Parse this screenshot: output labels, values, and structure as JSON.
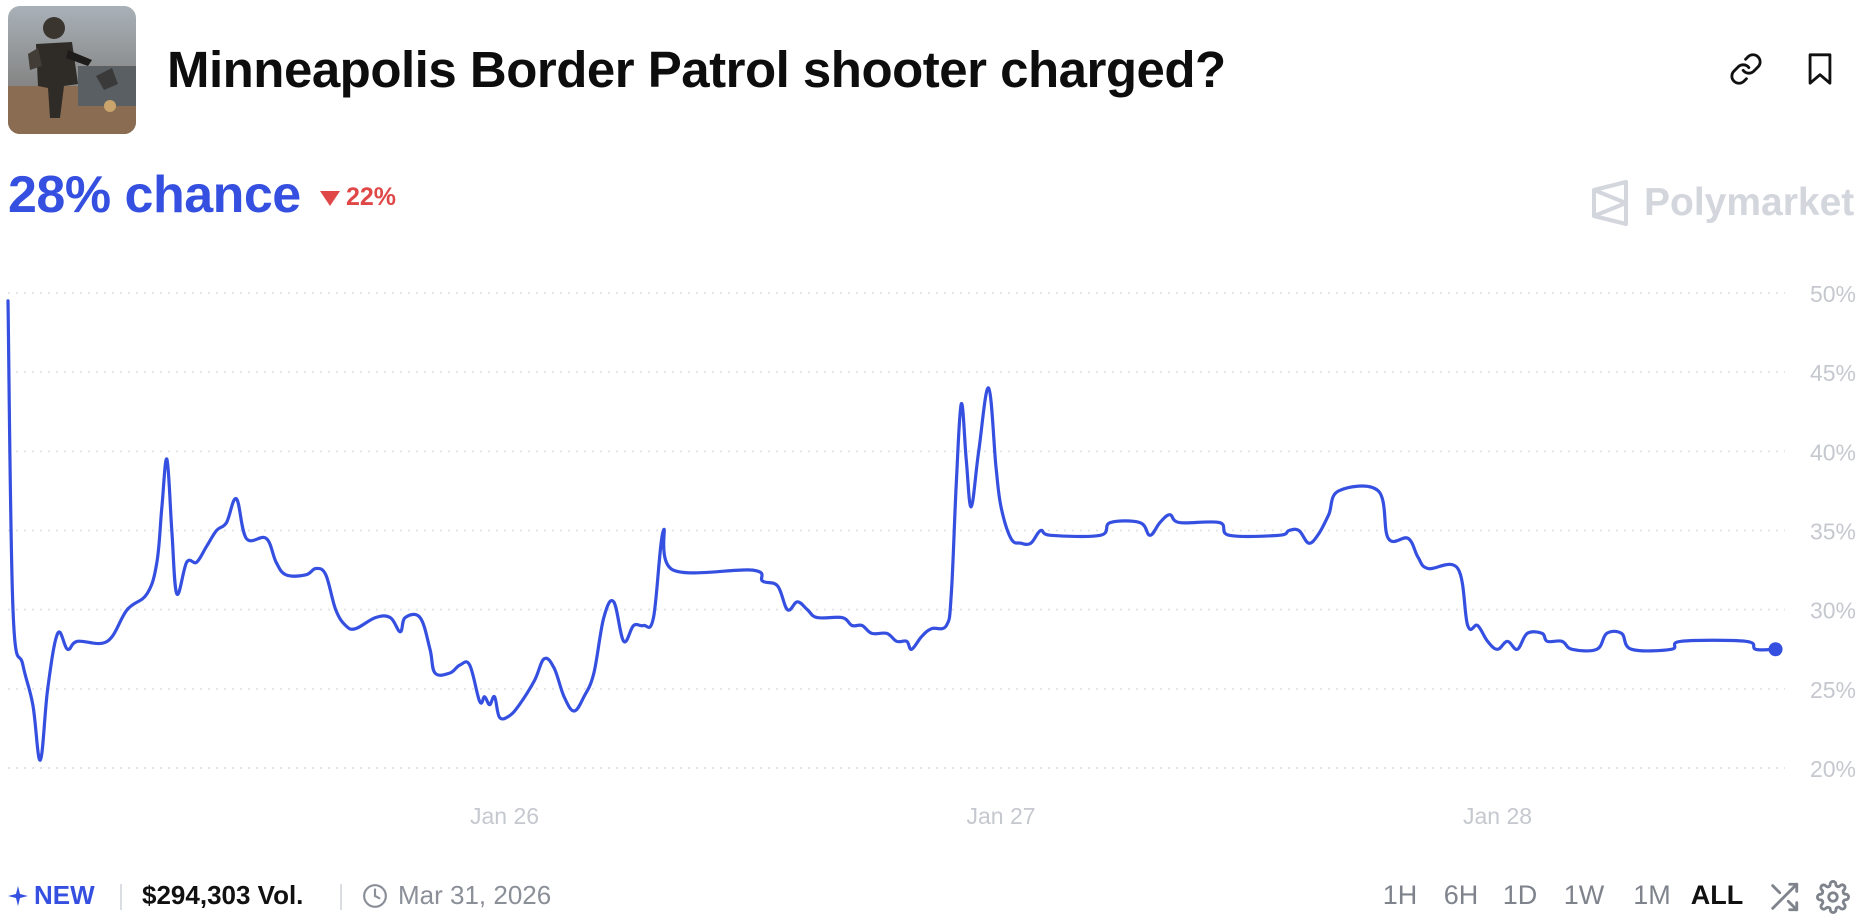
{
  "header": {
    "title": "Minneapolis Border Patrol shooter charged?",
    "thumbnail_icon": "market-photo-icon",
    "link_icon": "link-icon",
    "bookmark_icon": "bookmark-icon"
  },
  "summary": {
    "chance": "28% chance",
    "change": "22%",
    "change_direction": "down",
    "brand": "Polymarket"
  },
  "colors": {
    "accent": "#3550e0",
    "negative": "#e04848",
    "grid": "#e3e5e8",
    "axis_text": "#c5c8ce"
  },
  "chart_data": {
    "type": "line",
    "title": "",
    "xlabel": "",
    "ylabel": "",
    "ylim": [
      20,
      50
    ],
    "y_ticks": [
      "50%",
      "45%",
      "40%",
      "35%",
      "30%",
      "25%",
      "20%"
    ],
    "x_ticks": [
      "Jan 26",
      "Jan 27",
      "Jan 28"
    ],
    "x_tick_days": [
      1,
      2,
      3
    ],
    "grid": true,
    "series": [
      {
        "color": "#3550e0",
        "points": [
          [
            0.0,
            49.5
          ],
          [
            0.01,
            30.0
          ],
          [
            0.03,
            26.5
          ],
          [
            0.05,
            24.0
          ],
          [
            0.065,
            20.5
          ],
          [
            0.08,
            25.0
          ],
          [
            0.1,
            28.5
          ],
          [
            0.12,
            27.5
          ],
          [
            0.14,
            28.0
          ],
          [
            0.2,
            28.0
          ],
          [
            0.24,
            30.0
          ],
          [
            0.28,
            31.0
          ],
          [
            0.3,
            33.0
          ],
          [
            0.31,
            36.5
          ],
          [
            0.32,
            39.5
          ],
          [
            0.33,
            35.0
          ],
          [
            0.34,
            31.0
          ],
          [
            0.36,
            33.0
          ],
          [
            0.38,
            33.0
          ],
          [
            0.4,
            34.0
          ],
          [
            0.42,
            35.0
          ],
          [
            0.44,
            35.5
          ],
          [
            0.46,
            37.0
          ],
          [
            0.48,
            34.5
          ],
          [
            0.52,
            34.5
          ],
          [
            0.54,
            33.0
          ],
          [
            0.56,
            32.2
          ],
          [
            0.6,
            32.2
          ],
          [
            0.62,
            32.6
          ],
          [
            0.64,
            32.2
          ],
          [
            0.66,
            30.0
          ],
          [
            0.68,
            29.0
          ],
          [
            0.7,
            28.8
          ],
          [
            0.74,
            29.5
          ],
          [
            0.77,
            29.5
          ],
          [
            0.79,
            28.6
          ],
          [
            0.8,
            29.5
          ],
          [
            0.83,
            29.5
          ],
          [
            0.85,
            27.5
          ],
          [
            0.86,
            26.0
          ],
          [
            0.89,
            26.0
          ],
          [
            0.91,
            26.5
          ],
          [
            0.93,
            26.5
          ],
          [
            0.95,
            24.2
          ],
          [
            0.96,
            24.5
          ],
          [
            0.97,
            24.0
          ],
          [
            0.98,
            24.5
          ],
          [
            0.99,
            23.2
          ],
          [
            1.01,
            23.3
          ],
          [
            1.03,
            24.0
          ],
          [
            1.06,
            25.5
          ],
          [
            1.08,
            26.9
          ],
          [
            1.1,
            26.3
          ],
          [
            1.12,
            24.5
          ],
          [
            1.14,
            23.6
          ],
          [
            1.16,
            24.5
          ],
          [
            1.18,
            26.0
          ],
          [
            1.2,
            29.5
          ],
          [
            1.22,
            30.5
          ],
          [
            1.24,
            28.0
          ],
          [
            1.26,
            29.0
          ],
          [
            1.28,
            29.0
          ],
          [
            1.3,
            29.5
          ],
          [
            1.32,
            35.0
          ],
          [
            1.34,
            32.5
          ],
          [
            1.5,
            32.5
          ],
          [
            1.52,
            31.8
          ],
          [
            1.55,
            31.5
          ],
          [
            1.57,
            30.0
          ],
          [
            1.59,
            30.5
          ],
          [
            1.61,
            30.0
          ],
          [
            1.63,
            29.5
          ],
          [
            1.68,
            29.5
          ],
          [
            1.7,
            29.0
          ],
          [
            1.72,
            29.0
          ],
          [
            1.74,
            28.5
          ],
          [
            1.77,
            28.5
          ],
          [
            1.79,
            28.0
          ],
          [
            1.81,
            28.0
          ],
          [
            1.82,
            27.5
          ],
          [
            1.84,
            28.3
          ],
          [
            1.86,
            28.8
          ],
          [
            1.89,
            29.0
          ],
          [
            1.9,
            31.0
          ],
          [
            1.91,
            38.0
          ],
          [
            1.92,
            43.0
          ],
          [
            1.93,
            39.5
          ],
          [
            1.94,
            36.5
          ],
          [
            1.955,
            40.0
          ],
          [
            1.975,
            44.0
          ],
          [
            1.99,
            39.0
          ],
          [
            2.0,
            36.5
          ],
          [
            2.02,
            34.5
          ],
          [
            2.04,
            34.2
          ],
          [
            2.06,
            34.2
          ],
          [
            2.08,
            35.0
          ],
          [
            2.1,
            34.7
          ],
          [
            2.2,
            34.7
          ],
          [
            2.22,
            35.5
          ],
          [
            2.28,
            35.5
          ],
          [
            2.3,
            34.7
          ],
          [
            2.32,
            35.5
          ],
          [
            2.34,
            36.0
          ],
          [
            2.36,
            35.5
          ],
          [
            2.44,
            35.5
          ],
          [
            2.46,
            34.7
          ],
          [
            2.56,
            34.7
          ],
          [
            2.58,
            35.0
          ],
          [
            2.6,
            35.0
          ],
          [
            2.62,
            34.2
          ],
          [
            2.64,
            34.8
          ],
          [
            2.66,
            36.0
          ],
          [
            2.68,
            37.5
          ],
          [
            2.76,
            37.5
          ],
          [
            2.78,
            34.5
          ],
          [
            2.82,
            34.5
          ],
          [
            2.84,
            33.3
          ],
          [
            2.86,
            32.6
          ],
          [
            2.92,
            32.6
          ],
          [
            2.94,
            29.0
          ],
          [
            2.96,
            29.0
          ],
          [
            2.98,
            28.0
          ],
          [
            3.0,
            27.5
          ],
          [
            3.02,
            28.0
          ],
          [
            3.04,
            27.5
          ],
          [
            3.06,
            28.5
          ],
          [
            3.09,
            28.5
          ],
          [
            3.1,
            28.0
          ],
          [
            3.13,
            28.0
          ],
          [
            3.15,
            27.5
          ],
          [
            3.2,
            27.5
          ],
          [
            3.22,
            28.5
          ],
          [
            3.25,
            28.5
          ],
          [
            3.27,
            27.5
          ],
          [
            3.35,
            27.5
          ],
          [
            3.37,
            28.0
          ],
          [
            3.5,
            28.0
          ],
          [
            3.52,
            27.5
          ],
          [
            3.56,
            27.5
          ]
        ]
      }
    ]
  },
  "footer": {
    "new_label": "NEW",
    "volume": "$294,303 Vol.",
    "end_date": "Mar 31, 2026",
    "ranges": [
      "1H",
      "6H",
      "1D",
      "1W",
      "1M",
      "ALL"
    ],
    "active_range": "ALL",
    "shuffle_icon": "shuffle-icon",
    "settings_icon": "gear-icon"
  }
}
